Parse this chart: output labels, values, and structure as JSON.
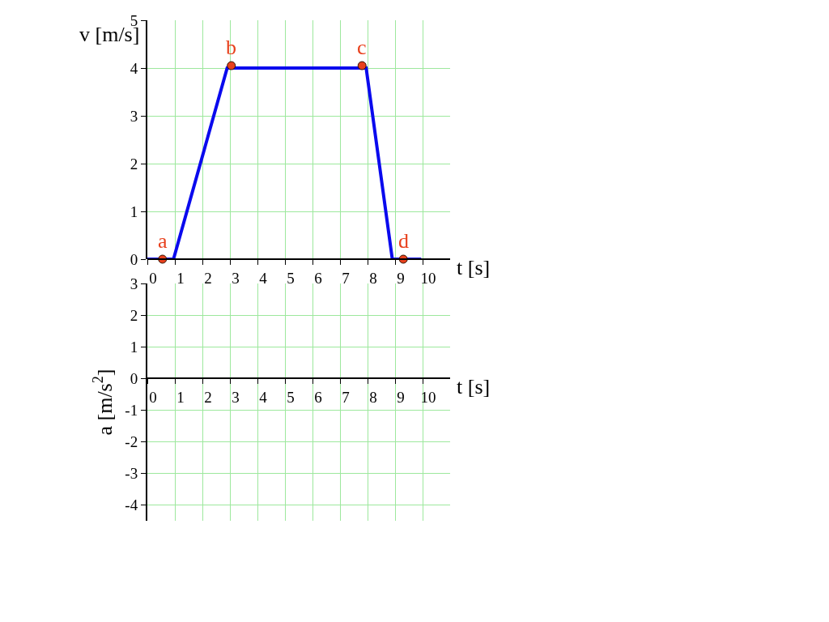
{
  "chart_data": [
    {
      "type": "line",
      "xlabel": "t [s]",
      "ylabel": "v [m/s]",
      "xlim": [
        0,
        11
      ],
      "xticks": [
        0,
        1,
        2,
        3,
        4,
        5,
        6,
        7,
        8,
        9,
        10
      ],
      "ylim": [
        0,
        5
      ],
      "yticks": [
        0,
        1,
        2,
        3,
        4,
        5
      ],
      "grid": true,
      "series": [
        {
          "color": "#0a0aee",
          "x": [
            0,
            0.95,
            2.9,
            7.95,
            8.9,
            9.95
          ],
          "values": [
            0,
            0,
            4,
            4,
            0,
            0
          ]
        },
        {
          "type": "scatter",
          "color": "#e8401c",
          "x": [
            0.55,
            3.05,
            7.8,
            9.3
          ],
          "values": [
            0,
            4.05,
            4.05,
            0
          ]
        }
      ],
      "annotations": [
        {
          "text": "a",
          "x": 0.55,
          "y": 0
        },
        {
          "text": "b",
          "x": 3.05,
          "y": 4.05
        },
        {
          "text": "c",
          "x": 7.8,
          "y": 4.05
        },
        {
          "text": "d",
          "x": 9.3,
          "y": 0
        }
      ]
    },
    {
      "type": "line",
      "xlabel": "t [s]",
      "ylabel": "a [m/s$^{2}$]",
      "xlim": [
        0,
        11
      ],
      "xticks": [
        0,
        1,
        2,
        3,
        4,
        5,
        6,
        7,
        8,
        9,
        10
      ],
      "ylim": [
        -4.5,
        3
      ],
      "yticks": [
        -4,
        -3,
        -2,
        -1,
        0,
        1,
        2,
        3
      ],
      "grid": true
    }
  ]
}
